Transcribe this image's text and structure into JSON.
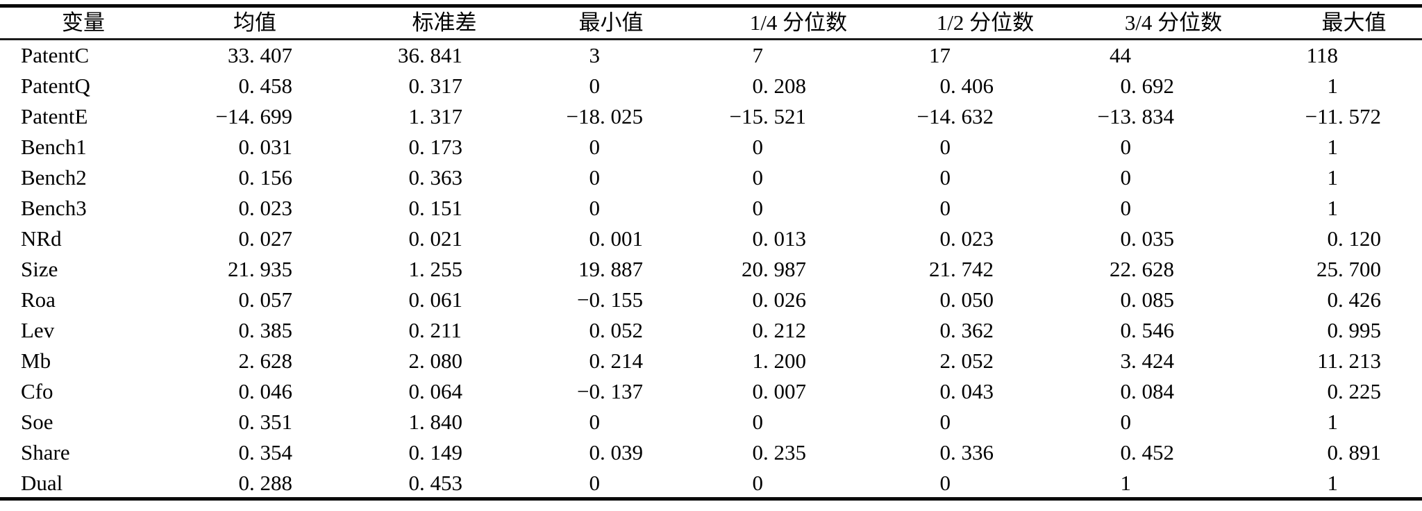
{
  "table": {
    "columns": [
      {
        "label": "变量"
      },
      {
        "label": "均值"
      },
      {
        "label": "标准差"
      },
      {
        "label": "最小值"
      },
      {
        "label": "1/4 分位数"
      },
      {
        "label": "1/2 分位数"
      },
      {
        "label": "3/4 分位数"
      },
      {
        "label": "最大值"
      }
    ],
    "rows": [
      {
        "variable": "PatentC",
        "values": [
          "33. 407",
          "36. 841",
          "3",
          "7",
          "17",
          "44",
          "118"
        ]
      },
      {
        "variable": "PatentQ",
        "values": [
          "0. 458",
          "0. 317",
          "0",
          "0. 208",
          "0. 406",
          "0. 692",
          "1"
        ]
      },
      {
        "variable": "PatentE",
        "values": [
          "−14. 699",
          "1. 317",
          "−18. 025",
          "−15. 521",
          "−14. 632",
          "−13. 834",
          "−11. 572"
        ]
      },
      {
        "variable": "Bench1",
        "values": [
          "0. 031",
          "0. 173",
          "0",
          "0",
          "0",
          "0",
          "1"
        ]
      },
      {
        "variable": "Bench2",
        "values": [
          "0. 156",
          "0. 363",
          "0",
          "0",
          "0",
          "0",
          "1"
        ]
      },
      {
        "variable": "Bench3",
        "values": [
          "0. 023",
          "0. 151",
          "0",
          "0",
          "0",
          "0",
          "1"
        ]
      },
      {
        "variable": "NRd",
        "values": [
          "0. 027",
          "0. 021",
          "0. 001",
          "0. 013",
          "0. 023",
          "0. 035",
          "0. 120"
        ]
      },
      {
        "variable": "Size",
        "values": [
          "21. 935",
          "1. 255",
          "19. 887",
          "20. 987",
          "21. 742",
          "22. 628",
          "25. 700"
        ]
      },
      {
        "variable": "Roa",
        "values": [
          "0. 057",
          "0. 061",
          "−0. 155",
          "0. 026",
          "0. 050",
          "0. 085",
          "0. 426"
        ]
      },
      {
        "variable": "Lev",
        "values": [
          "0. 385",
          "0. 211",
          "0. 052",
          "0. 212",
          "0. 362",
          "0. 546",
          "0. 995"
        ]
      },
      {
        "variable": "Mb",
        "values": [
          "2. 628",
          "2. 080",
          "0. 214",
          "1. 200",
          "2. 052",
          "3. 424",
          "11. 213"
        ]
      },
      {
        "variable": "Cfo",
        "values": [
          "0. 046",
          "0. 064",
          "−0. 137",
          "0. 007",
          "0. 043",
          "0. 084",
          "0. 225"
        ]
      },
      {
        "variable": "Soe",
        "values": [
          "0. 351",
          "1. 840",
          "0",
          "0",
          "0",
          "0",
          "1"
        ]
      },
      {
        "variable": "Share",
        "values": [
          "0. 354",
          "0. 149",
          "0. 039",
          "0. 235",
          "0. 336",
          "0. 452",
          "0. 891"
        ]
      },
      {
        "variable": "Dual",
        "values": [
          "0. 288",
          "0. 453",
          "0",
          "0",
          "0",
          "1",
          "1"
        ]
      }
    ]
  }
}
